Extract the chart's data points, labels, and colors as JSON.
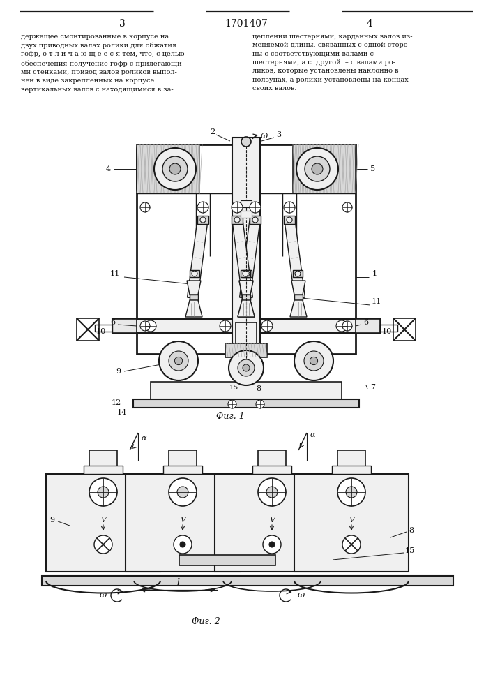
{
  "page_num_left": "3",
  "page_num_center": "1701407",
  "page_num_right": "4",
  "text_left": "держащее смонтированные в корпусе на\nдвух приводных валах ролики для обжатия\nгофр, о т л и ч а ю щ е е с я тем, что, с целью\nобеспечения получение гофр с прилегающи-\nми стенками, привод валов роликов выпол-\nнен в виде закрепленных на корпусе\nвертикальных валов с находящимися в за-",
  "text_right": "цеплении шестернями, карданных валов из-\nменяемой длины, связанных с одной сторо-\nны с соответствующими валами с\nшестернями, а с  другой  – с валами ро-\nликов, которые установлены наклонно в\nползунах, а ролики установлены на концах\nсвоих валов.",
  "fig1_label": "Фиг. 1",
  "fig2_label": "Фиг. 2",
  "bg_color": "#ffffff",
  "line_color": "#1a1a1a",
  "text_color": "#111111",
  "hatch_gray": "#888888",
  "fill_light": "#f0f0f0",
  "fill_mid": "#d8d8d8",
  "fill_dark": "#b8b8b8"
}
